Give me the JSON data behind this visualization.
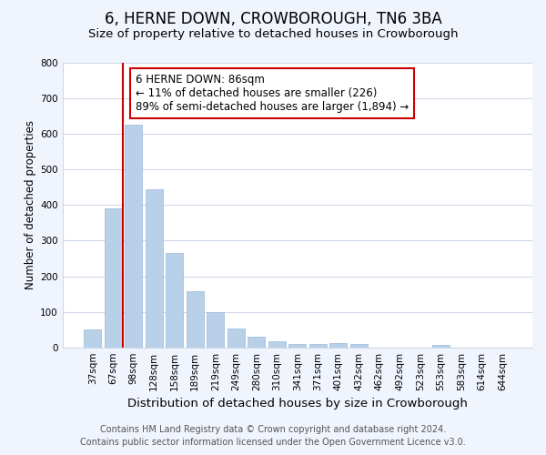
{
  "title": "6, HERNE DOWN, CROWBOROUGH, TN6 3BA",
  "subtitle": "Size of property relative to detached houses in Crowborough",
  "xlabel": "Distribution of detached houses by size in Crowborough",
  "ylabel": "Number of detached properties",
  "categories": [
    "37sqm",
    "67sqm",
    "98sqm",
    "128sqm",
    "158sqm",
    "189sqm",
    "219sqm",
    "249sqm",
    "280sqm",
    "310sqm",
    "341sqm",
    "371sqm",
    "401sqm",
    "432sqm",
    "462sqm",
    "492sqm",
    "523sqm",
    "553sqm",
    "583sqm",
    "614sqm",
    "644sqm"
  ],
  "values": [
    50,
    390,
    625,
    445,
    265,
    157,
    98,
    52,
    30,
    17,
    10,
    10,
    12,
    10,
    0,
    0,
    0,
    7,
    0,
    0,
    0
  ],
  "bar_color": "#b8d0e8",
  "bar_edge_color": "#9ab8d8",
  "vline_color": "#cc0000",
  "annotation_line1": "6 HERNE DOWN: 86sqm",
  "annotation_line2": "← 11% of detached houses are smaller (226)",
  "annotation_line3": "89% of semi-detached houses are larger (1,894) →",
  "annotation_box_color": "#ffffff",
  "annotation_box_edge": "#cc0000",
  "ylim": [
    0,
    800
  ],
  "yticks": [
    0,
    100,
    200,
    300,
    400,
    500,
    600,
    700,
    800
  ],
  "footer_line1": "Contains HM Land Registry data © Crown copyright and database right 2024.",
  "footer_line2": "Contains public sector information licensed under the Open Government Licence v3.0.",
  "plot_bg_color": "#ffffff",
  "fig_bg_color": "#f0f4fc",
  "title_fontsize": 12,
  "subtitle_fontsize": 9.5,
  "xlabel_fontsize": 9.5,
  "ylabel_fontsize": 8.5,
  "tick_fontsize": 7.5,
  "annotation_fontsize": 8.5,
  "footer_fontsize": 7
}
